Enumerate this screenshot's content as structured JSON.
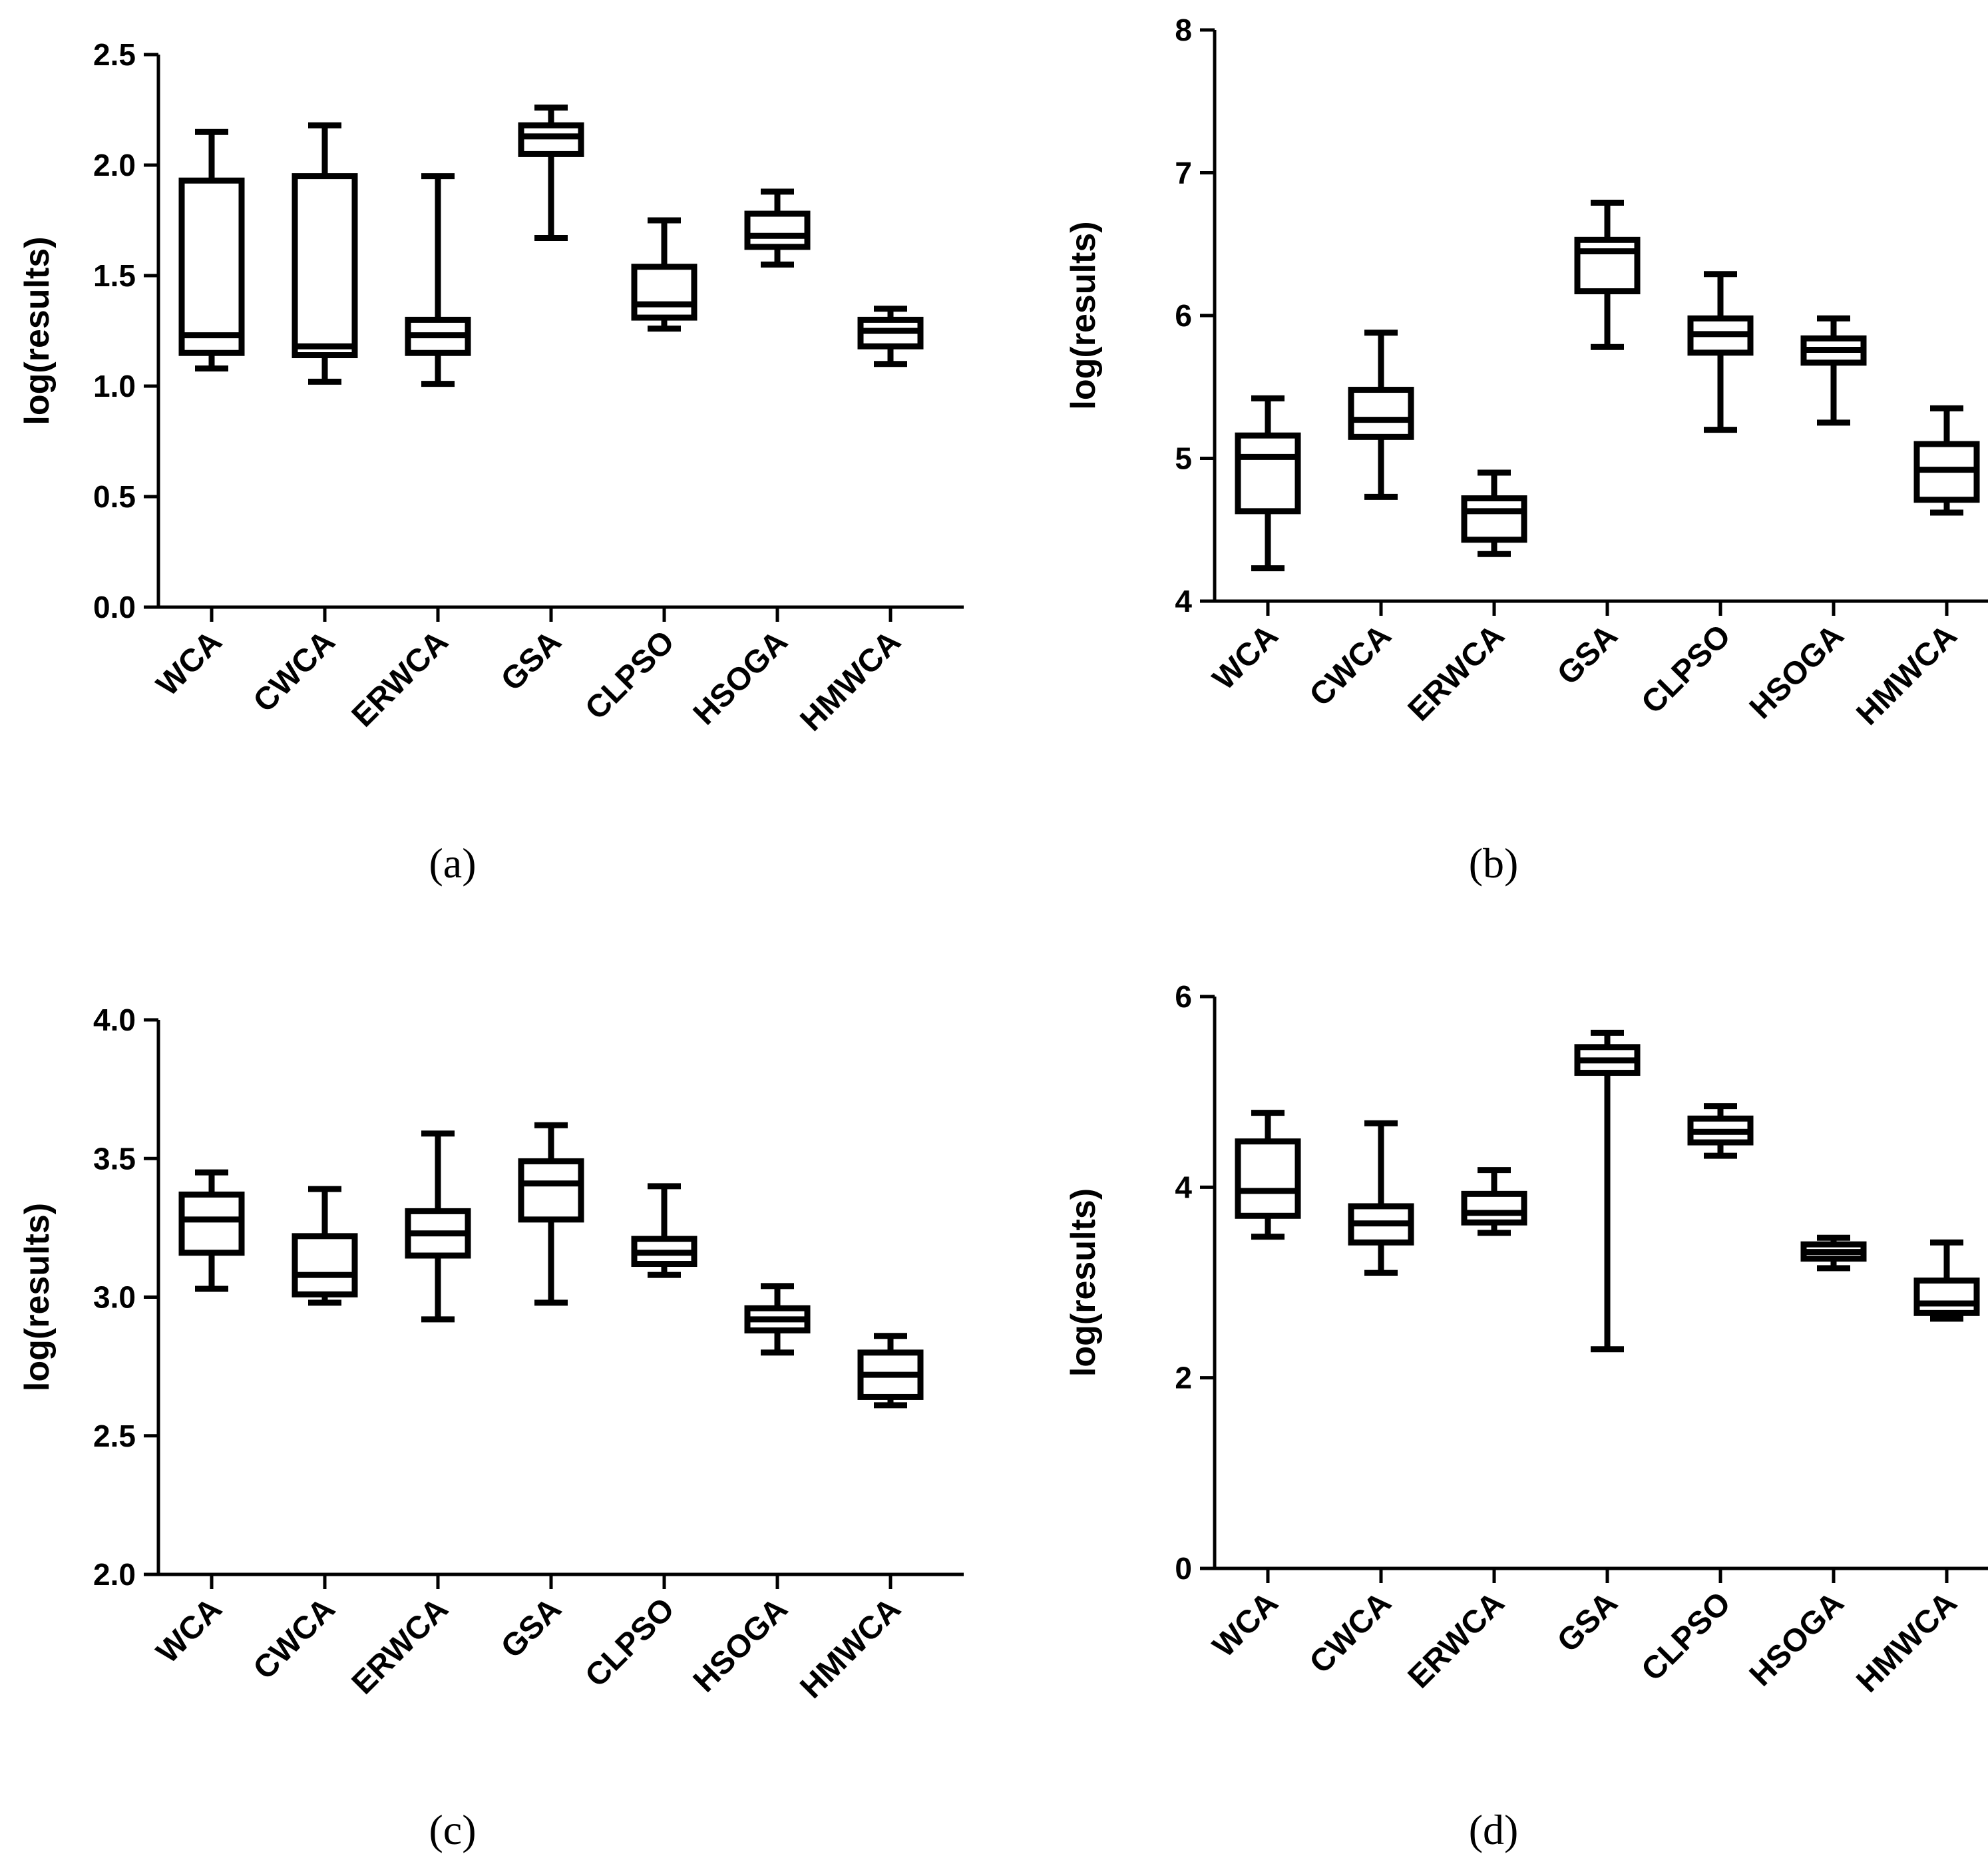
{
  "chart_data": [
    {
      "type": "box",
      "caption": "(a)",
      "ylabel": "log(results)",
      "ylim": [
        0.0,
        2.5
      ],
      "yticks": [
        "0.0",
        "0.5",
        "1.0",
        "1.5",
        "2.0",
        "2.5"
      ],
      "categories": [
        "WCA",
        "CWCA",
        "ERWCA",
        "GSA",
        "CLPSO",
        "HSOGA",
        "HMWCA"
      ],
      "boxes": [
        {
          "min": 1.08,
          "q1": 1.15,
          "median": 1.23,
          "q3": 1.93,
          "max": 2.15
        },
        {
          "min": 1.02,
          "q1": 1.14,
          "median": 1.18,
          "q3": 1.95,
          "max": 2.18
        },
        {
          "min": 1.01,
          "q1": 1.15,
          "median": 1.23,
          "q3": 1.3,
          "max": 1.95
        },
        {
          "min": 1.67,
          "q1": 2.05,
          "median": 2.13,
          "q3": 2.18,
          "max": 2.26
        },
        {
          "min": 1.26,
          "q1": 1.31,
          "median": 1.37,
          "q3": 1.54,
          "max": 1.75
        },
        {
          "min": 1.55,
          "q1": 1.63,
          "median": 1.68,
          "q3": 1.78,
          "max": 1.88
        },
        {
          "min": 1.1,
          "q1": 1.18,
          "median": 1.25,
          "q3": 1.3,
          "max": 1.35
        }
      ]
    },
    {
      "type": "box",
      "caption": "(b)",
      "ylabel": "log(results)",
      "ylim": [
        4,
        8
      ],
      "yticks": [
        "4",
        "5",
        "6",
        "7",
        "8"
      ],
      "categories": [
        "WCA",
        "CWCA",
        "ERWCA",
        "GSA",
        "CLPSO",
        "HSOGA",
        "HMWCA"
      ],
      "boxes": [
        {
          "min": 4.23,
          "q1": 4.63,
          "median": 5.01,
          "q3": 5.16,
          "max": 5.42
        },
        {
          "min": 4.73,
          "q1": 5.15,
          "median": 5.27,
          "q3": 5.48,
          "max": 5.88
        },
        {
          "min": 4.33,
          "q1": 4.43,
          "median": 4.63,
          "q3": 4.72,
          "max": 4.9
        },
        {
          "min": 5.78,
          "q1": 6.17,
          "median": 6.45,
          "q3": 6.53,
          "max": 6.79
        },
        {
          "min": 5.2,
          "q1": 5.74,
          "median": 5.87,
          "q3": 5.98,
          "max": 6.29
        },
        {
          "min": 5.25,
          "q1": 5.67,
          "median": 5.76,
          "q3": 5.84,
          "max": 5.98
        },
        {
          "min": 4.62,
          "q1": 4.71,
          "median": 4.92,
          "q3": 5.1,
          "max": 5.35
        }
      ]
    },
    {
      "type": "box",
      "caption": "(c)",
      "ylabel": "log(results)",
      "ylim": [
        2.0,
        4.0
      ],
      "yticks": [
        "2.0",
        "2.5",
        "3.0",
        "3.5",
        "4.0"
      ],
      "categories": [
        "WCA",
        "CWCA",
        "ERWCA",
        "GSA",
        "CLPSO",
        "HSOGA",
        "HMWCA"
      ],
      "boxes": [
        {
          "min": 3.03,
          "q1": 3.16,
          "median": 3.28,
          "q3": 3.37,
          "max": 3.45
        },
        {
          "min": 2.98,
          "q1": 3.01,
          "median": 3.08,
          "q3": 3.22,
          "max": 3.39
        },
        {
          "min": 2.92,
          "q1": 3.15,
          "median": 3.23,
          "q3": 3.31,
          "max": 3.59
        },
        {
          "min": 2.98,
          "q1": 3.28,
          "median": 3.41,
          "q3": 3.49,
          "max": 3.62
        },
        {
          "min": 3.08,
          "q1": 3.12,
          "median": 3.16,
          "q3": 3.21,
          "max": 3.4
        },
        {
          "min": 2.8,
          "q1": 2.88,
          "median": 2.92,
          "q3": 2.96,
          "max": 3.04
        },
        {
          "min": 2.61,
          "q1": 2.64,
          "median": 2.72,
          "q3": 2.8,
          "max": 2.86
        }
      ]
    },
    {
      "type": "box",
      "caption": "(d)",
      "ylabel": "log(results)",
      "ylim": [
        0,
        6
      ],
      "yticks": [
        "0",
        "2",
        "4",
        "6"
      ],
      "categories": [
        "WCA",
        "CWCA",
        "ERWCA",
        "GSA",
        "CLPSO",
        "HSOGA",
        "HMWCA"
      ],
      "boxes": [
        {
          "min": 3.48,
          "q1": 3.7,
          "median": 3.96,
          "q3": 4.48,
          "max": 4.78
        },
        {
          "min": 3.1,
          "q1": 3.42,
          "median": 3.62,
          "q3": 3.8,
          "max": 4.67
        },
        {
          "min": 3.52,
          "q1": 3.63,
          "median": 3.73,
          "q3": 3.93,
          "max": 4.18
        },
        {
          "min": 2.3,
          "q1": 5.2,
          "median": 5.33,
          "q3": 5.47,
          "max": 5.62
        },
        {
          "min": 4.33,
          "q1": 4.47,
          "median": 4.58,
          "q3": 4.72,
          "max": 4.85
        },
        {
          "min": 3.15,
          "q1": 3.25,
          "median": 3.32,
          "q3": 3.4,
          "max": 3.47
        },
        {
          "min": 2.62,
          "q1": 2.68,
          "median": 2.78,
          "q3": 3.02,
          "max": 3.42
        }
      ]
    }
  ]
}
